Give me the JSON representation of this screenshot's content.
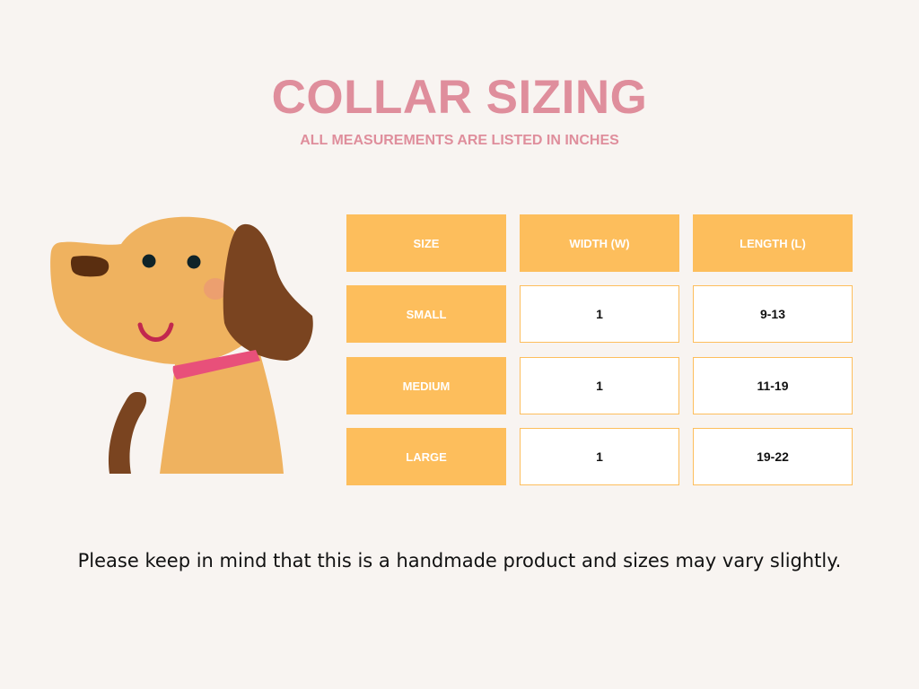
{
  "title": "COLLAR SIZING",
  "subtitle": "ALL MEASUREMENTS ARE LISTED IN INCHES",
  "table": {
    "headers": [
      "SIZE",
      "WIDTH (W)",
      "LENGTH (L)"
    ],
    "rows": [
      {
        "size": "SMALL",
        "width": "1",
        "length": "9-13"
      },
      {
        "size": "MEDIUM",
        "width": "1",
        "length": "11-19"
      },
      {
        "size": "LARGE",
        "width": "1",
        "length": "19-22"
      }
    ]
  },
  "note": "Please keep in mind that this is a handmade product and sizes may vary slightly.",
  "colors": {
    "accent": "#FDBE5C",
    "title": "#DF8E9C",
    "background": "#F8F4F1"
  },
  "illustration": "dog-illustration"
}
